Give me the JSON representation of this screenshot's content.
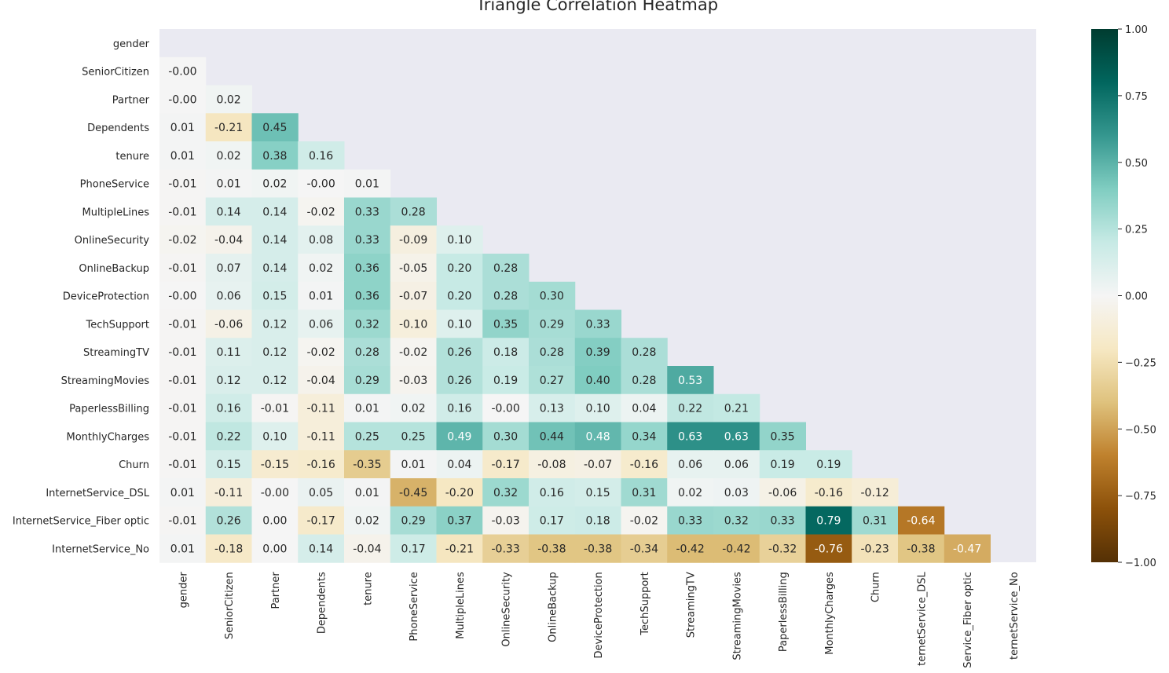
{
  "chart_data": {
    "type": "heatmap",
    "title": "Triangle Correlation Heatmap",
    "variables": [
      "gender",
      "SeniorCitizen",
      "Partner",
      "Dependents",
      "tenure",
      "PhoneService",
      "MultipleLines",
      "OnlineSecurity",
      "OnlineBackup",
      "DeviceProtection",
      "TechSupport",
      "StreamingTV",
      "StreamingMovies",
      "PaperlessBilling",
      "MonthlyCharges",
      "Churn",
      "InternetService_DSL",
      "InternetService_Fiber optic",
      "InternetService_No"
    ],
    "x_tick_labels": [
      "gender",
      "SeniorCitizen",
      "Partner",
      "Dependents",
      "tenure",
      "PhoneService",
      "MultipleLines",
      "OnlineSecurity",
      "OnlineBackup",
      "DeviceProtection",
      "TechSupport",
      "StreamingTV",
      "StreamingMovies",
      "PaperlessBilling",
      "MonthlyCharges",
      "Churn",
      "ternetService_DSL",
      "Service_Fiber optic",
      "ternetService_No"
    ],
    "mask": "upper triangle including diagonal",
    "lower_triangle": [
      [],
      [
        "-0.00"
      ],
      [
        "-0.00",
        "0.02"
      ],
      [
        "0.01",
        "-0.21",
        "0.45"
      ],
      [
        "0.01",
        "0.02",
        "0.38",
        "0.16"
      ],
      [
        "-0.01",
        "0.01",
        "0.02",
        "-0.00",
        "0.01"
      ],
      [
        "-0.01",
        "0.14",
        "0.14",
        "-0.02",
        "0.33",
        "0.28"
      ],
      [
        "-0.02",
        "-0.04",
        "0.14",
        "0.08",
        "0.33",
        "-0.09",
        "0.10"
      ],
      [
        "-0.01",
        "0.07",
        "0.14",
        "0.02",
        "0.36",
        "-0.05",
        "0.20",
        "0.28"
      ],
      [
        "-0.00",
        "0.06",
        "0.15",
        "0.01",
        "0.36",
        "-0.07",
        "0.20",
        "0.28",
        "0.30"
      ],
      [
        "-0.01",
        "-0.06",
        "0.12",
        "0.06",
        "0.32",
        "-0.10",
        "0.10",
        "0.35",
        "0.29",
        "0.33"
      ],
      [
        "-0.01",
        "0.11",
        "0.12",
        "-0.02",
        "0.28",
        "-0.02",
        "0.26",
        "0.18",
        "0.28",
        "0.39",
        "0.28"
      ],
      [
        "-0.01",
        "0.12",
        "0.12",
        "-0.04",
        "0.29",
        "-0.03",
        "0.26",
        "0.19",
        "0.27",
        "0.40",
        "0.28",
        "0.53"
      ],
      [
        "-0.01",
        "0.16",
        "-0.01",
        "-0.11",
        "0.01",
        "0.02",
        "0.16",
        "-0.00",
        "0.13",
        "0.10",
        "0.04",
        "0.22",
        "0.21"
      ],
      [
        "-0.01",
        "0.22",
        "0.10",
        "-0.11",
        "0.25",
        "0.25",
        "0.49",
        "0.30",
        "0.44",
        "0.48",
        "0.34",
        "0.63",
        "0.63",
        "0.35"
      ],
      [
        "-0.01",
        "0.15",
        "-0.15",
        "-0.16",
        "-0.35",
        "0.01",
        "0.04",
        "-0.17",
        "-0.08",
        "-0.07",
        "-0.16",
        "0.06",
        "0.06",
        "0.19",
        "0.19"
      ],
      [
        "0.01",
        "-0.11",
        "-0.00",
        "0.05",
        "0.01",
        "-0.45",
        "-0.20",
        "0.32",
        "0.16",
        "0.15",
        "0.31",
        "0.02",
        "0.03",
        "-0.06",
        "-0.16",
        "-0.12"
      ],
      [
        "-0.01",
        "0.26",
        "0.00",
        "-0.17",
        "0.02",
        "0.29",
        "0.37",
        "-0.03",
        "0.17",
        "0.18",
        "-0.02",
        "0.33",
        "0.32",
        "0.33",
        "0.79",
        "0.31",
        "-0.64"
      ],
      [
        "0.01",
        "-0.18",
        "0.00",
        "0.14",
        "-0.04",
        "0.17",
        "-0.21",
        "-0.33",
        "-0.38",
        "-0.38",
        "-0.34",
        "-0.42",
        "-0.42",
        "-0.32",
        "-0.76",
        "-0.23",
        "-0.38",
        "-0.47"
      ]
    ],
    "colormap": "BrBG",
    "vmin": -1,
    "vmax": 1,
    "colorbar_ticks": [
      "1.00",
      "0.75",
      "0.50",
      "0.25",
      "0.00",
      "−0.25",
      "−0.50",
      "−0.75",
      "−1.00"
    ],
    "masked_color": "#eaeaf2"
  }
}
